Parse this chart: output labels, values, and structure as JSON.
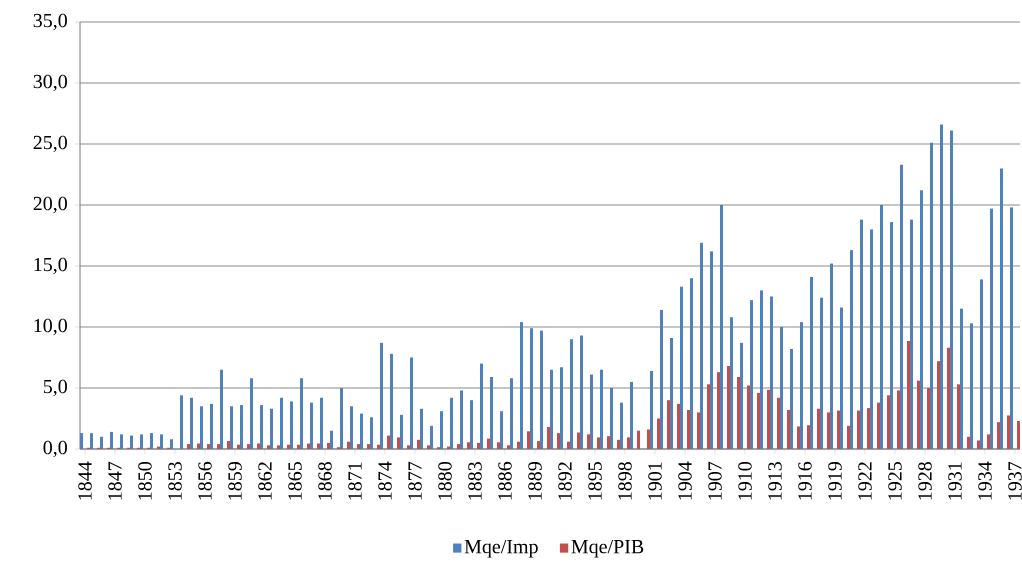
{
  "chart_data": {
    "type": "bar",
    "x": [
      1844,
      1845,
      1846,
      1847,
      1848,
      1849,
      1850,
      1851,
      1852,
      1853,
      1854,
      1855,
      1856,
      1857,
      1858,
      1859,
      1860,
      1861,
      1862,
      1863,
      1864,
      1865,
      1866,
      1867,
      1868,
      1869,
      1870,
      1871,
      1872,
      1873,
      1874,
      1875,
      1876,
      1877,
      1878,
      1879,
      1880,
      1881,
      1882,
      1883,
      1884,
      1885,
      1886,
      1887,
      1888,
      1889,
      1890,
      1891,
      1892,
      1893,
      1894,
      1895,
      1896,
      1897,
      1898,
      1899,
      1900,
      1901,
      1902,
      1903,
      1904,
      1905,
      1906,
      1907,
      1908,
      1909,
      1910,
      1911,
      1912,
      1913,
      1914,
      1915,
      1916,
      1917,
      1918,
      1919,
      1920,
      1921,
      1922,
      1923,
      1924,
      1925,
      1926,
      1927,
      1928,
      1929,
      1930,
      1931,
      1932,
      1933,
      1934,
      1935,
      1936,
      1937
    ],
    "series": [
      {
        "name": "Mqe/Imp",
        "color": "#4f81bd",
        "values": [
          1.3,
          1.3,
          1.0,
          1.4,
          1.2,
          1.1,
          1.2,
          1.3,
          1.2,
          0.8,
          4.4,
          4.2,
          3.5,
          3.7,
          6.5,
          3.5,
          3.6,
          5.8,
          3.6,
          3.3,
          4.2,
          3.9,
          5.8,
          3.8,
          4.2,
          1.5,
          5.0,
          3.5,
          2.9,
          2.6,
          8.7,
          7.8,
          2.8,
          7.5,
          3.3,
          1.9,
          3.1,
          4.2,
          4.8,
          4.0,
          7.0,
          5.9,
          3.1,
          5.8,
          10.4,
          9.9,
          9.7,
          6.5,
          6.7,
          9.0,
          9.3,
          6.1,
          6.5,
          5.0,
          3.8,
          5.5,
          null,
          6.4,
          11.4,
          9.1,
          13.3,
          14.0,
          16.9,
          16.2,
          20.0,
          10.8,
          8.7,
          12.2,
          13.0,
          12.5,
          10.0,
          8.2,
          10.4,
          14.1,
          12.4,
          15.2,
          11.6,
          16.3,
          18.8,
          18.0,
          20.0,
          18.6,
          23.3,
          18.8,
          21.2,
          25.1,
          26.6,
          26.1,
          11.5,
          10.3,
          13.9,
          19.7,
          23.0,
          19.8
        ]
      },
      {
        "name": "Mqe/PIB",
        "color": "#c0504d",
        "values": [
          0.1,
          0.1,
          0.1,
          0.1,
          0.1,
          0.1,
          0.1,
          0.2,
          0.1,
          0.0,
          0.4,
          0.45,
          0.4,
          0.4,
          0.65,
          0.35,
          0.4,
          0.45,
          0.3,
          0.3,
          0.35,
          0.35,
          0.45,
          0.45,
          0.5,
          0.15,
          0.6,
          0.4,
          0.4,
          0.35,
          1.1,
          0.95,
          0.3,
          0.75,
          0.3,
          0.15,
          0.2,
          0.4,
          0.55,
          0.5,
          0.85,
          0.55,
          0.3,
          0.6,
          1.45,
          0.65,
          1.8,
          1.3,
          0.6,
          1.35,
          1.2,
          0.95,
          1.05,
          0.75,
          0.95,
          1.5,
          1.6,
          2.5,
          4.0,
          3.7,
          3.2,
          3.0,
          5.3,
          6.3,
          6.8,
          5.9,
          5.2,
          4.6,
          4.85,
          4.2,
          3.2,
          1.85,
          1.95,
          3.3,
          3.0,
          3.15,
          1.9,
          3.15,
          3.35,
          3.8,
          4.4,
          4.8,
          8.85,
          5.6,
          5.0,
          7.2,
          8.3,
          5.3,
          1.0,
          0.7,
          1.2,
          2.2,
          2.75,
          2.3
        ]
      }
    ],
    "xlim": [
      1843.5,
      1937.5
    ],
    "xticks": [
      1844,
      1847,
      1850,
      1853,
      1856,
      1859,
      1862,
      1865,
      1868,
      1871,
      1874,
      1877,
      1880,
      1883,
      1886,
      1889,
      1892,
      1895,
      1898,
      1901,
      1904,
      1907,
      1910,
      1913,
      1916,
      1919,
      1922,
      1925,
      1928,
      1931,
      1934,
      1937
    ],
    "ylim": [
      0,
      35
    ],
    "yticks": [
      {
        "value": 0,
        "label": "0,0"
      },
      {
        "value": 5,
        "label": "5,0"
      },
      {
        "value": 10,
        "label": "10,0"
      },
      {
        "value": 15,
        "label": "15,0"
      },
      {
        "value": 20,
        "label": "20,0"
      },
      {
        "value": 25,
        "label": "25,0"
      },
      {
        "value": 30,
        "label": "30,0"
      },
      {
        "value": 35,
        "label": "35,0"
      }
    ],
    "grid": "y",
    "legend": "bottom"
  }
}
